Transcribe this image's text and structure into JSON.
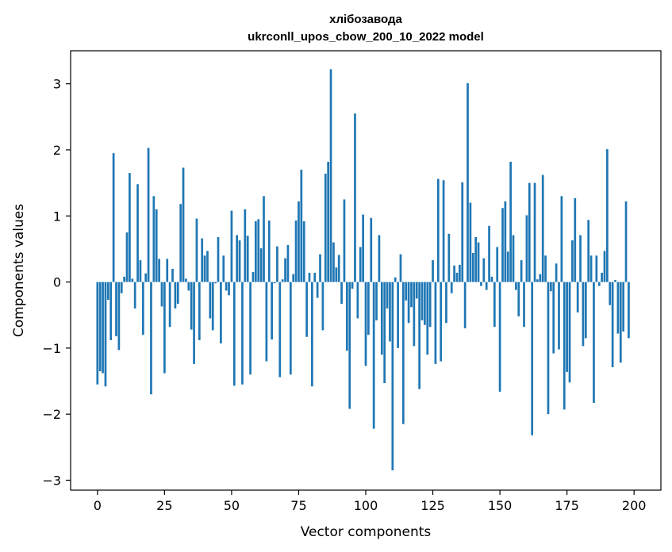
{
  "chart_data": {
    "type": "bar",
    "title": "хлібозавода",
    "subtitle": "ukrconll_upos_cbow_200_10_2022 model",
    "xlabel": "Vector components",
    "ylabel": "Components values",
    "xlim": [
      -10,
      210
    ],
    "ylim": [
      -3.15,
      3.5
    ],
    "xticks": [
      0,
      25,
      50,
      75,
      100,
      125,
      150,
      175,
      200
    ],
    "xtick_labels": [
      "0",
      "25",
      "50",
      "75",
      "100",
      "125",
      "150",
      "175",
      "200"
    ],
    "yticks": [
      -3,
      -2,
      -1,
      0,
      1,
      2,
      3
    ],
    "ytick_labels": [
      "−3",
      "−2",
      "−1",
      "0",
      "1",
      "2",
      "3"
    ],
    "bar_color": "#1f77b4",
    "values": [
      -1.55,
      -1.35,
      -1.38,
      -1.58,
      -0.27,
      -0.88,
      1.95,
      -0.82,
      -1.03,
      -0.17,
      0.08,
      0.75,
      1.65,
      0.05,
      -0.4,
      1.48,
      0.33,
      -0.8,
      0.13,
      2.03,
      -1.7,
      1.3,
      1.1,
      0.35,
      -0.37,
      -1.38,
      0.35,
      -0.68,
      0.2,
      -0.4,
      -0.33,
      1.18,
      1.73,
      0.05,
      -0.13,
      -0.72,
      -1.24,
      0.96,
      -0.88,
      0.66,
      0.4,
      0.47,
      -0.55,
      -0.73,
      -0.02,
      0.68,
      -0.93,
      0.4,
      -0.13,
      -0.2,
      1.08,
      -1.57,
      0.71,
      0.63,
      -1.55,
      1.1,
      0.7,
      -1.4,
      0.15,
      0.92,
      0.95,
      0.51,
      1.3,
      -1.2,
      0.93,
      -0.87,
      -0.02,
      0.54,
      -1.44,
      0.04,
      0.36,
      0.56,
      -1.4,
      0.12,
      0.93,
      1.22,
      1.7,
      0.92,
      -0.83,
      0.14,
      -1.58,
      0.14,
      -0.24,
      0.42,
      -0.73,
      1.64,
      1.82,
      3.22,
      0.6,
      0.22,
      0.41,
      -0.33,
      1.25,
      -1.04,
      -1.92,
      -0.1,
      2.55,
      -0.55,
      0.53,
      1.02,
      -1.27,
      -0.8,
      0.97,
      -2.22,
      -0.58,
      0.71,
      -1.1,
      -1.53,
      -0.4,
      -0.9,
      -2.85,
      0.07,
      -1.0,
      0.42,
      -2.15,
      -0.28,
      -0.62,
      -0.38,
      -0.97,
      -0.25,
      -1.62,
      -0.58,
      -0.65,
      -1.1,
      -0.68,
      0.33,
      -1.24,
      1.56,
      -1.2,
      1.54,
      -0.62,
      0.73,
      -0.17,
      0.25,
      0.14,
      0.26,
      1.51,
      -0.7,
      3.01,
      1.2,
      0.44,
      0.68,
      0.6,
      -0.06,
      0.36,
      -0.12,
      0.85,
      0.08,
      -0.68,
      0.53,
      -1.66,
      1.12,
      1.22,
      0.46,
      1.82,
      0.71,
      -0.12,
      -0.52,
      0.33,
      -0.68,
      1.01,
      1.5,
      -2.32,
      1.5,
      0.04,
      0.12,
      1.62,
      0.4,
      -2.0,
      -0.14,
      -1.08,
      0.28,
      -1.02,
      1.3,
      -1.93,
      -1.36,
      -1.52,
      0.63,
      1.27,
      -0.46,
      0.71,
      -0.97,
      -0.85,
      0.94,
      0.4,
      -1.83,
      0.4,
      -0.06,
      0.14,
      0.47,
      2.01,
      -0.35,
      -1.29,
      0.03,
      -0.78,
      -1.22,
      -0.75,
      1.22,
      -0.85
    ]
  }
}
